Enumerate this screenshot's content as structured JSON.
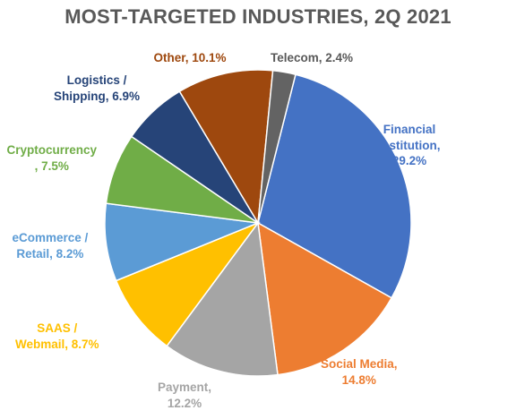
{
  "chart_data": {
    "type": "pie",
    "title": "MOST-TARGETED INDUSTRIES, 2Q 2021",
    "slices": [
      {
        "name": "Financial Institution",
        "value": 29.2,
        "color": "#4472C4",
        "label_lines": [
          "Financial",
          "Institution,",
          "29.2%"
        ]
      },
      {
        "name": "Social Media",
        "value": 14.8,
        "color": "#ED7D31",
        "label_lines": [
          "Social Media,",
          "14.8%"
        ]
      },
      {
        "name": "Payment",
        "value": 12.2,
        "color": "#A5A5A5",
        "label_lines": [
          "Payment,",
          "12.2%"
        ]
      },
      {
        "name": "SAAS / Webmail",
        "value": 8.7,
        "color": "#FFC000",
        "label_lines": [
          "SAAS /",
          "Webmail, 8.7%"
        ]
      },
      {
        "name": "eCommerce / Retail",
        "value": 8.2,
        "color": "#5B9BD5",
        "label_lines": [
          "eCommerce /",
          "Retail, 8.2%"
        ]
      },
      {
        "name": "Cryptocurrency",
        "value": 7.5,
        "color": "#70AD47",
        "label_lines": [
          "Cryptocurrency",
          ", 7.5%"
        ]
      },
      {
        "name": "Logistics / Shipping",
        "value": 6.9,
        "color": "#264478",
        "label_lines": [
          "Logistics /",
          "Shipping, 6.9%"
        ]
      },
      {
        "name": "Other",
        "value": 10.1,
        "color": "#9E480E",
        "label_lines": [
          "Other, 10.1%"
        ]
      },
      {
        "name": "Telecom",
        "value": 2.4,
        "color": "#636363",
        "label_lines": [
          "Telecom, 2.4%"
        ]
      }
    ]
  }
}
